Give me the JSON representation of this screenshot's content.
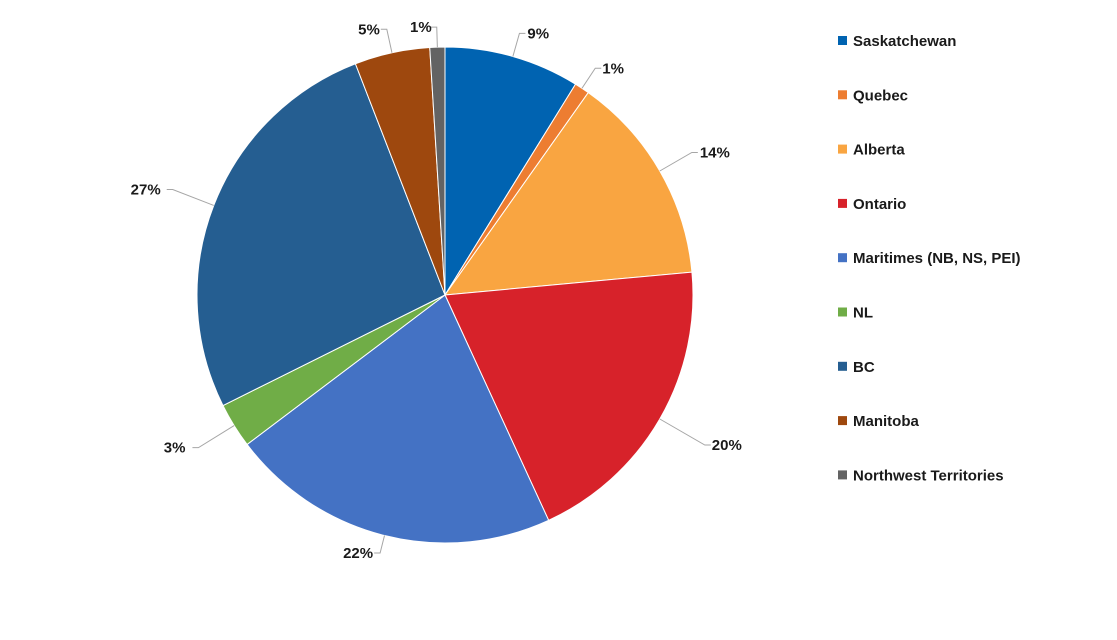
{
  "chart_data": {
    "type": "pie",
    "title": "",
    "legend_position": "right",
    "slices": [
      {
        "name": "Saskatchewan",
        "value": 9,
        "label": "9%",
        "color": "#0063b1"
      },
      {
        "name": "Quebec",
        "value": 1,
        "label": "1%",
        "color": "#ed7d31"
      },
      {
        "name": "Alberta",
        "value": 14,
        "label": "14%",
        "color": "#f9a541"
      },
      {
        "name": "Ontario",
        "value": 20,
        "label": "20%",
        "color": "#d7222a"
      },
      {
        "name": "Maritimes (NB, NS, PEI)",
        "value": 22,
        "label": "22%",
        "color": "#4472c4"
      },
      {
        "name": "NL",
        "value": 3,
        "label": "3%",
        "color": "#70ad47"
      },
      {
        "name": "BC",
        "value": 27,
        "label": "27%",
        "color": "#255e91"
      },
      {
        "name": "Manitoba",
        "value": 5,
        "label": "5%",
        "color": "#9e480e"
      },
      {
        "name": "Northwest Territories",
        "value": 1,
        "label": "1%",
        "color": "#636363"
      }
    ]
  }
}
